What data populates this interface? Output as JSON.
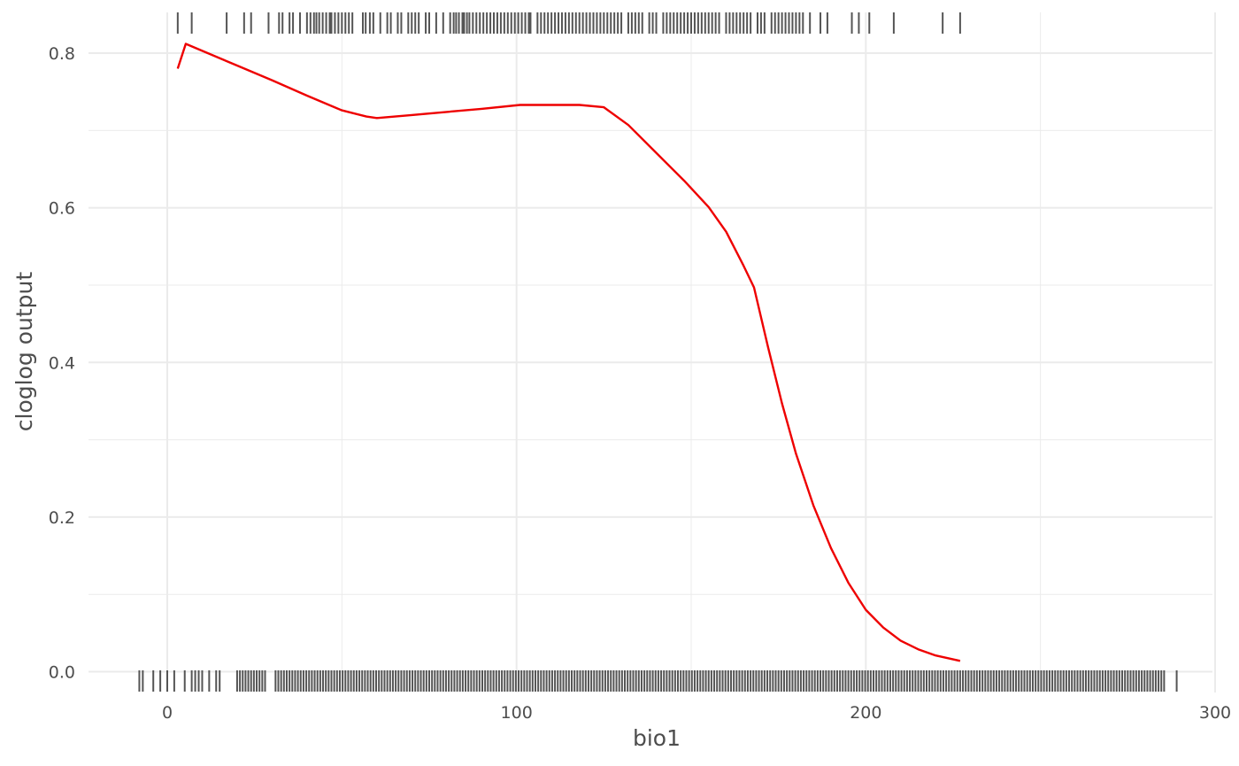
{
  "chart_data": {
    "type": "line",
    "title": "",
    "xlabel": "bio1",
    "ylabel": "cloglog output",
    "xlim": [
      -23,
      300
    ],
    "ylim": [
      -0.02,
      0.84
    ],
    "x_ticks": [
      0,
      100,
      200,
      300
    ],
    "x_tick_labels": [
      "0",
      "100",
      "200",
      "300"
    ],
    "y_ticks": [
      0.0,
      0.2,
      0.4,
      0.6,
      0.8
    ],
    "y_tick_labels": [
      "0.0",
      "0.2",
      "0.4",
      "0.6",
      "0.8"
    ],
    "grid": true,
    "legend": "none",
    "series": [
      {
        "color": "#ee0000",
        "x": [
          3,
          5.3,
          10,
          20,
          30,
          40,
          50,
          57,
          60,
          70,
          80,
          90,
          101,
          110,
          118,
          125,
          132,
          140,
          148,
          155,
          160,
          165,
          168,
          172,
          176,
          180,
          185,
          190,
          195,
          200,
          205,
          210,
          215,
          220,
          227
        ],
        "y": [
          0.78,
          0.812,
          0.803,
          0.784,
          0.765,
          0.745,
          0.726,
          0.718,
          0.716,
          0.72,
          0.724,
          0.728,
          0.733,
          0.733,
          0.733,
          0.73,
          0.707,
          0.671,
          0.635,
          0.601,
          0.569,
          0.525,
          0.497,
          0.42,
          0.347,
          0.282,
          0.215,
          0.16,
          0.115,
          0.08,
          0.057,
          0.04,
          0.029,
          0.021,
          0.014
        ]
      }
    ],
    "rug_presence": [
      3,
      7,
      17,
      22,
      24,
      29,
      32,
      33,
      35,
      36,
      38,
      40,
      41,
      42,
      42.7,
      43.5,
      44.5,
      45.5,
      46.5,
      47,
      48,
      49,
      50,
      51,
      52,
      53,
      56,
      56.8,
      58,
      59,
      61,
      63,
      64,
      66,
      67,
      69,
      70,
      71,
      72,
      74,
      75,
      77,
      79,
      81,
      82,
      82.7,
      83.5,
      84.5,
      85,
      85.8,
      86.5,
      87.5,
      88.5,
      89.5,
      90.5,
      91.5,
      92.5,
      93.5,
      94.5,
      95.5,
      96.5,
      97.5,
      98.5,
      99.5,
      100.5,
      101.5,
      102.5,
      103.5,
      104,
      106,
      107,
      108,
      109,
      110,
      111,
      112,
      113,
      114,
      115,
      116,
      117,
      118,
      119,
      120,
      121,
      122,
      123,
      124,
      125,
      126,
      127,
      128,
      129,
      130,
      132,
      133,
      134,
      135,
      136,
      138,
      139,
      140,
      142,
      143,
      144,
      145,
      146,
      147,
      148,
      149,
      150,
      151,
      152,
      153,
      154,
      155,
      156,
      157,
      158,
      160,
      161,
      162,
      163,
      164,
      165,
      166,
      167,
      169,
      170,
      171,
      173,
      174,
      175,
      176,
      177,
      178,
      179,
      180,
      181,
      182,
      184,
      187,
      189,
      196,
      198,
      201,
      208,
      222,
      227
    ],
    "rug_background": [
      -8,
      -7,
      -4,
      -2,
      0,
      2,
      5,
      7,
      8,
      9,
      10,
      12,
      14,
      15,
      20,
      20.8,
      21.6,
      22.4,
      23.2,
      24,
      24.8,
      25.6,
      26.4,
      27.2,
      28,
      31,
      31.8,
      32.6,
      33.4,
      34.2,
      35,
      35.8,
      36.6,
      37.4,
      38.2,
      39,
      39.8,
      40.6,
      41.4,
      42.2,
      43,
      43.8,
      44.6,
      45.4,
      46.2,
      47,
      47.8,
      48.6,
      49.4,
      50.2,
      51,
      51.8,
      52.6,
      53.4,
      54.2,
      55,
      55.8,
      56.6,
      57.4,
      58.2,
      59,
      59.8,
      60.6,
      61.4,
      62.2,
      63,
      63.8,
      64.6,
      65.4,
      66.2,
      67,
      67.8,
      68.6,
      69.4,
      70.2,
      71,
      71.8,
      72.6,
      73.4,
      74.2,
      75,
      75.8,
      76.6,
      77.4,
      78.2,
      79,
      79.8,
      80.6,
      81.4,
      82.2,
      83,
      83.8,
      84.6,
      85.4,
      86.2,
      87,
      87.8,
      88.6,
      89.4,
      90.2,
      91,
      91.8,
      92.6,
      93.4,
      94.2,
      95,
      95.8,
      96.6,
      97.4,
      98.2,
      99,
      99.8,
      100.6,
      101.4,
      102.2,
      103,
      103.8,
      104.6,
      105.4,
      106.2,
      107,
      107.8,
      108.6,
      109.4,
      110.2,
      111,
      111.8,
      112.6,
      113.4,
      114.2,
      115,
      115.8,
      116.6,
      117.4,
      118.2,
      119,
      119.8,
      120.6,
      121.4,
      122.2,
      123,
      123.8,
      124.6,
      125.4,
      126.2,
      127,
      127.8,
      128.6,
      129.4,
      130.2,
      131,
      131.8,
      132.6,
      133.4,
      134.2,
      135,
      135.8,
      136.6,
      137.4,
      138.2,
      139,
      139.8,
      140.6,
      141.4,
      142.2,
      143,
      143.8,
      144.6,
      145.4,
      146.2,
      147,
      147.8,
      148.6,
      149.4,
      150.2,
      151,
      151.8,
      152.6,
      153.4,
      154.2,
      155,
      155.8,
      156.6,
      157.4,
      158.2,
      159,
      159.8,
      160.6,
      161.4,
      162.2,
      163,
      163.8,
      164.6,
      165.4,
      166.2,
      167,
      167.8,
      168.6,
      169.4,
      170.2,
      171,
      171.8,
      172.6,
      173.4,
      174.2,
      175,
      175.8,
      176.6,
      177.4,
      178.2,
      179,
      179.8,
      180.6,
      181.4,
      182.2,
      183,
      183.8,
      184.6,
      185.4,
      186.2,
      187,
      187.8,
      188.6,
      189.4,
      190.2,
      191,
      191.8,
      192.6,
      193.4,
      194.2,
      195,
      195.8,
      196.6,
      197.4,
      198.2,
      199,
      199.8,
      200.6,
      201.4,
      202.2,
      203,
      203.8,
      204.6,
      205.4,
      206.2,
      207,
      207.8,
      208.6,
      209.4,
      210.2,
      211,
      211.8,
      212.6,
      213.4,
      214.2,
      215,
      215.8,
      216.6,
      217.4,
      218.2,
      219,
      219.8,
      220.6,
      221.4,
      222.2,
      223,
      223.8,
      224.6,
      225.4,
      226.2,
      227,
      227.8,
      228.6,
      229.4,
      230.2,
      231,
      231.8,
      232.6,
      233.4,
      234.2,
      235,
      235.8,
      236.6,
      237.4,
      238.2,
      239,
      239.8,
      240.6,
      241.4,
      242.2,
      243,
      243.8,
      244.6,
      245.4,
      246.2,
      247,
      247.8,
      248.6,
      249.4,
      250.2,
      251,
      251.8,
      252.6,
      253.4,
      254.2,
      255,
      255.8,
      256.6,
      257.4,
      258.2,
      259,
      259.8,
      260.6,
      261.4,
      262.2,
      263,
      263.8,
      264.6,
      265.4,
      266.2,
      267,
      267.8,
      268.6,
      269.4,
      270.2,
      271,
      271.8,
      272.6,
      273.4,
      274.2,
      275,
      275.8,
      276.6,
      277.4,
      278.2,
      279,
      279.8,
      280.6,
      281.4,
      282.2,
      283,
      283.8,
      284.6,
      285.4,
      289
    ],
    "rug_color": "#555555",
    "grid_color": "#ebebeb"
  }
}
